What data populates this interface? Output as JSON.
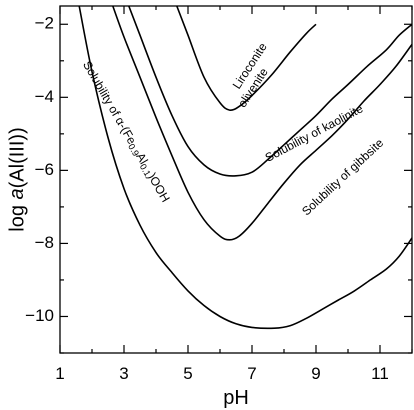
{
  "chart_data": {
    "type": "line",
    "xlabel": "pH",
    "ylabel": "log a(Al(III))",
    "xlim": [
      1,
      12
    ],
    "ylim": [
      -11,
      -1.5
    ],
    "x_ticks": [
      1,
      3,
      5,
      7,
      9,
      11
    ],
    "y_ticks": [
      -2,
      -4,
      -6,
      -8,
      -10
    ],
    "grid": false,
    "series": [
      {
        "name": "Liroconite olivenite",
        "points": [
          [
            4.65,
            -1.5
          ],
          [
            5.0,
            -2.3
          ],
          [
            5.5,
            -3.45
          ],
          [
            6.0,
            -4.15
          ],
          [
            6.3,
            -4.35
          ],
          [
            6.6,
            -4.25
          ],
          [
            7.0,
            -3.95
          ],
          [
            7.6,
            -3.4
          ],
          [
            8.2,
            -2.75
          ],
          [
            8.7,
            -2.25
          ],
          [
            9.0,
            -2.0
          ]
        ]
      },
      {
        "name": "Solubility of kaolinite",
        "points": [
          [
            3.15,
            -1.5
          ],
          [
            3.5,
            -2.3
          ],
          [
            4.0,
            -3.45
          ],
          [
            4.5,
            -4.5
          ],
          [
            5.0,
            -5.35
          ],
          [
            5.5,
            -5.85
          ],
          [
            6.0,
            -6.1
          ],
          [
            6.5,
            -6.15
          ],
          [
            7.0,
            -6.05
          ],
          [
            7.5,
            -5.7
          ],
          [
            8.0,
            -5.3
          ],
          [
            8.5,
            -4.9
          ],
          [
            9.0,
            -4.5
          ],
          [
            9.5,
            -4.05
          ],
          [
            10.0,
            -3.65
          ],
          [
            10.6,
            -3.15
          ],
          [
            11.2,
            -2.7
          ],
          [
            11.6,
            -2.3
          ],
          [
            12.0,
            -2.0
          ]
        ]
      },
      {
        "name": "Solubility of gibbsite",
        "points": [
          [
            2.65,
            -1.5
          ],
          [
            3.0,
            -2.35
          ],
          [
            3.5,
            -3.45
          ],
          [
            4.0,
            -4.55
          ],
          [
            4.5,
            -5.6
          ],
          [
            5.0,
            -6.6
          ],
          [
            5.5,
            -7.35
          ],
          [
            6.0,
            -7.8
          ],
          [
            6.3,
            -7.9
          ],
          [
            6.6,
            -7.8
          ],
          [
            7.0,
            -7.45
          ],
          [
            7.5,
            -6.9
          ],
          [
            8.0,
            -6.35
          ],
          [
            8.5,
            -5.85
          ],
          [
            9.0,
            -5.45
          ],
          [
            9.5,
            -5.05
          ],
          [
            10.0,
            -4.6
          ],
          [
            10.5,
            -4.1
          ],
          [
            11.0,
            -3.65
          ],
          [
            11.5,
            -3.15
          ],
          [
            12.0,
            -2.55
          ]
        ]
      },
      {
        "name": "Solubility of α-(Fe0.9Al0.1)OOH",
        "points": [
          [
            1.6,
            -1.5
          ],
          [
            2.0,
            -3.3
          ],
          [
            2.5,
            -5.1
          ],
          [
            3.0,
            -6.5
          ],
          [
            3.5,
            -7.5
          ],
          [
            4.0,
            -8.25
          ],
          [
            4.5,
            -8.8
          ],
          [
            5.0,
            -9.3
          ],
          [
            5.5,
            -9.7
          ],
          [
            6.0,
            -10.0
          ],
          [
            6.5,
            -10.2
          ],
          [
            7.0,
            -10.3
          ],
          [
            7.7,
            -10.32
          ],
          [
            8.2,
            -10.25
          ],
          [
            8.7,
            -10.05
          ],
          [
            9.2,
            -9.8
          ],
          [
            9.7,
            -9.55
          ],
          [
            10.2,
            -9.3
          ],
          [
            10.7,
            -9.0
          ],
          [
            11.2,
            -8.7
          ],
          [
            11.6,
            -8.35
          ],
          [
            12.0,
            -7.85
          ]
        ]
      }
    ],
    "annotations": [
      {
        "text": "Liroconite",
        "x": 6.95,
        "y": -3.15,
        "angle": -57
      },
      {
        "text": "olivenite",
        "x": 7.05,
        "y": -3.75,
        "angle": -57
      },
      {
        "text": "Solubility of kaolinite",
        "x": 8.95,
        "y": -5.0,
        "angle": -28
      },
      {
        "text": "Solubility of gibbsite",
        "x": 9.85,
        "y": -6.2,
        "angle": -43
      },
      {
        "text": "Solubility of α-(Fe0.9Al0.1)OOH",
        "x": 3.05,
        "y": -4.95,
        "angle": 60
      }
    ]
  }
}
